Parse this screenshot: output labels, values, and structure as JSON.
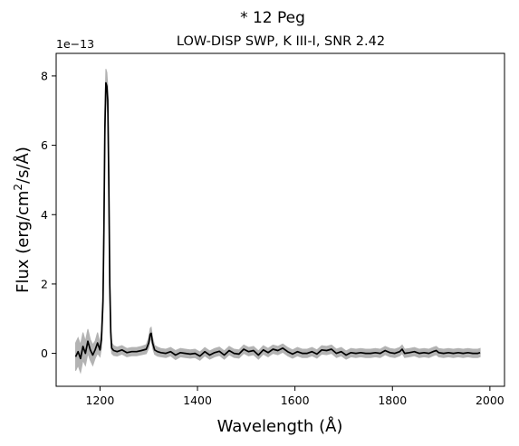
{
  "chart_data": {
    "type": "line",
    "suptitle": "*  12 Peg",
    "title": "LOW-DISP SWP, K III-I, SNR 2.42",
    "xlabel": "Wavelength (Å)",
    "ylabel_prefix": "Flux (erg/cm",
    "ylabel_sup": "2",
    "ylabel_suffix": "/s/Å)",
    "offset_text": "1e−13",
    "xlim": [
      1110,
      2030
    ],
    "ylim": [
      -0.95,
      8.65
    ],
    "y_scale_exponent": -13,
    "xticks": [
      1200,
      1400,
      1600,
      1800,
      2000
    ],
    "yticks": [
      0,
      2,
      4,
      6,
      8
    ],
    "grid": false,
    "legend": "none",
    "series": [
      {
        "role": "flux",
        "color": "#000000",
        "x": [
          1150,
          1155,
          1160,
          1165,
          1170,
          1175,
          1180,
          1185,
          1190,
          1195,
          1200,
          1203,
          1206,
          1208,
          1210,
          1212,
          1214,
          1216,
          1218,
          1220,
          1222,
          1224,
          1228,
          1235,
          1245,
          1255,
          1265,
          1275,
          1285,
          1295,
          1300,
          1303,
          1305,
          1308,
          1312,
          1318,
          1325,
          1335,
          1345,
          1355,
          1365,
          1375,
          1385,
          1395,
          1405,
          1415,
          1425,
          1435,
          1445,
          1455,
          1465,
          1475,
          1485,
          1495,
          1505,
          1515,
          1525,
          1535,
          1545,
          1555,
          1565,
          1575,
          1585,
          1595,
          1605,
          1615,
          1625,
          1635,
          1645,
          1655,
          1665,
          1675,
          1685,
          1695,
          1705,
          1715,
          1725,
          1735,
          1745,
          1755,
          1765,
          1775,
          1785,
          1795,
          1805,
          1815,
          1820,
          1825,
          1835,
          1845,
          1855,
          1865,
          1875,
          1885,
          1890,
          1895,
          1905,
          1915,
          1925,
          1935,
          1945,
          1955,
          1965,
          1975,
          1980
        ],
        "y": [
          -0.1,
          0.05,
          -0.15,
          0.2,
          0.0,
          0.35,
          0.1,
          -0.05,
          0.1,
          0.3,
          0.1,
          0.4,
          1.5,
          3.5,
          6.5,
          7.8,
          7.7,
          7.3,
          5.0,
          2.0,
          0.6,
          0.15,
          0.08,
          0.05,
          0.1,
          0.02,
          0.05,
          0.05,
          0.08,
          0.12,
          0.3,
          0.55,
          0.58,
          0.3,
          0.1,
          0.05,
          0.02,
          0.0,
          0.05,
          -0.05,
          0.02,
          0.0,
          -0.02,
          0.0,
          -0.08,
          0.05,
          -0.05,
          0.02,
          0.06,
          -0.05,
          0.08,
          0.0,
          -0.02,
          0.12,
          0.05,
          0.08,
          -0.05,
          0.1,
          0.02,
          0.12,
          0.08,
          0.15,
          0.05,
          -0.02,
          0.05,
          0.0,
          0.0,
          0.05,
          -0.02,
          0.1,
          0.08,
          0.12,
          0.0,
          0.05,
          -0.05,
          0.02,
          0.0,
          0.02,
          0.0,
          0.0,
          0.02,
          0.0,
          0.08,
          0.02,
          0.0,
          0.05,
          0.12,
          0.0,
          0.02,
          0.05,
          0.0,
          0.02,
          0.0,
          0.06,
          0.08,
          0.02,
          0.0,
          0.02,
          0.0,
          0.02,
          0.0,
          0.02,
          0.0,
          0.0,
          0.02
        ]
      },
      {
        "role": "uncertainty_upper",
        "color": "#b3b3b3",
        "x": [
          1150,
          1155,
          1160,
          1165,
          1170,
          1175,
          1180,
          1185,
          1190,
          1195,
          1200,
          1203,
          1206,
          1208,
          1210,
          1212,
          1214,
          1216,
          1218,
          1220,
          1222,
          1224,
          1228,
          1235,
          1245,
          1255,
          1265,
          1275,
          1285,
          1295,
          1300,
          1303,
          1305,
          1308,
          1312,
          1318,
          1325,
          1335,
          1345,
          1355,
          1365,
          1375,
          1385,
          1395,
          1405,
          1415,
          1425,
          1435,
          1445,
          1455,
          1465,
          1475,
          1485,
          1495,
          1505,
          1515,
          1525,
          1535,
          1545,
          1555,
          1565,
          1575,
          1585,
          1595,
          1605,
          1615,
          1625,
          1635,
          1645,
          1655,
          1665,
          1675,
          1685,
          1695,
          1705,
          1715,
          1725,
          1735,
          1745,
          1755,
          1765,
          1775,
          1785,
          1795,
          1805,
          1815,
          1820,
          1825,
          1835,
          1845,
          1855,
          1865,
          1875,
          1885,
          1890,
          1895,
          1905,
          1915,
          1925,
          1935,
          1945,
          1955,
          1965,
          1975,
          1980
        ],
        "y": [
          0.3,
          0.45,
          0.25,
          0.6,
          0.35,
          0.7,
          0.4,
          0.25,
          0.35,
          0.6,
          0.3,
          0.65,
          1.8,
          3.9,
          7.0,
          8.2,
          8.1,
          7.7,
          5.4,
          2.3,
          0.8,
          0.3,
          0.22,
          0.18,
          0.22,
          0.14,
          0.17,
          0.17,
          0.2,
          0.25,
          0.45,
          0.72,
          0.75,
          0.45,
          0.23,
          0.18,
          0.14,
          0.12,
          0.17,
          0.08,
          0.14,
          0.12,
          0.1,
          0.12,
          0.04,
          0.17,
          0.07,
          0.14,
          0.18,
          0.07,
          0.2,
          0.12,
          0.1,
          0.24,
          0.17,
          0.2,
          0.07,
          0.22,
          0.14,
          0.24,
          0.2,
          0.27,
          0.17,
          0.1,
          0.17,
          0.12,
          0.12,
          0.17,
          0.1,
          0.22,
          0.2,
          0.24,
          0.12,
          0.17,
          0.07,
          0.14,
          0.12,
          0.14,
          0.12,
          0.12,
          0.14,
          0.12,
          0.2,
          0.14,
          0.12,
          0.17,
          0.24,
          0.12,
          0.14,
          0.17,
          0.12,
          0.14,
          0.12,
          0.18,
          0.2,
          0.14,
          0.12,
          0.14,
          0.12,
          0.14,
          0.12,
          0.14,
          0.12,
          0.12,
          0.14
        ]
      },
      {
        "role": "uncertainty_lower",
        "color": "#b3b3b3",
        "x": [
          1150,
          1155,
          1160,
          1165,
          1170,
          1175,
          1180,
          1185,
          1190,
          1195,
          1200,
          1203,
          1206,
          1208,
          1210,
          1212,
          1214,
          1216,
          1218,
          1220,
          1222,
          1224,
          1228,
          1235,
          1245,
          1255,
          1265,
          1275,
          1285,
          1295,
          1300,
          1303,
          1305,
          1308,
          1312,
          1318,
          1325,
          1335,
          1345,
          1355,
          1365,
          1375,
          1385,
          1395,
          1405,
          1415,
          1425,
          1435,
          1445,
          1455,
          1465,
          1475,
          1485,
          1495,
          1505,
          1515,
          1525,
          1535,
          1545,
          1555,
          1565,
          1575,
          1585,
          1595,
          1605,
          1615,
          1625,
          1635,
          1645,
          1655,
          1665,
          1675,
          1685,
          1695,
          1705,
          1715,
          1725,
          1735,
          1745,
          1755,
          1765,
          1775,
          1785,
          1795,
          1805,
          1815,
          1820,
          1825,
          1835,
          1845,
          1855,
          1865,
          1875,
          1885,
          1890,
          1895,
          1905,
          1915,
          1925,
          1935,
          1945,
          1955,
          1965,
          1975,
          1980
        ],
        "y": [
          -0.5,
          -0.35,
          -0.55,
          -0.2,
          -0.35,
          0.0,
          -0.2,
          -0.35,
          -0.15,
          0.0,
          -0.1,
          0.15,
          1.2,
          3.1,
          6.0,
          7.4,
          7.3,
          6.9,
          4.6,
          1.7,
          0.4,
          0.0,
          -0.06,
          -0.08,
          -0.02,
          -0.1,
          -0.07,
          -0.07,
          -0.04,
          -0.01,
          0.15,
          0.38,
          0.41,
          0.15,
          -0.03,
          -0.08,
          -0.1,
          -0.12,
          -0.07,
          -0.18,
          -0.1,
          -0.12,
          -0.14,
          -0.12,
          -0.2,
          -0.07,
          -0.17,
          -0.1,
          -0.06,
          -0.17,
          -0.04,
          -0.12,
          -0.14,
          0.0,
          -0.07,
          -0.04,
          -0.17,
          -0.02,
          -0.1,
          0.0,
          -0.04,
          0.03,
          -0.07,
          -0.14,
          -0.07,
          -0.12,
          -0.12,
          -0.07,
          -0.14,
          -0.02,
          -0.04,
          0.0,
          -0.12,
          -0.07,
          -0.17,
          -0.1,
          -0.12,
          -0.1,
          -0.12,
          -0.12,
          -0.1,
          -0.12,
          -0.04,
          -0.1,
          -0.12,
          -0.07,
          0.0,
          -0.12,
          -0.1,
          -0.07,
          -0.12,
          -0.1,
          -0.12,
          -0.06,
          -0.04,
          -0.1,
          -0.12,
          -0.1,
          -0.12,
          -0.1,
          -0.12,
          -0.1,
          -0.12,
          -0.12,
          -0.1
        ]
      }
    ]
  }
}
